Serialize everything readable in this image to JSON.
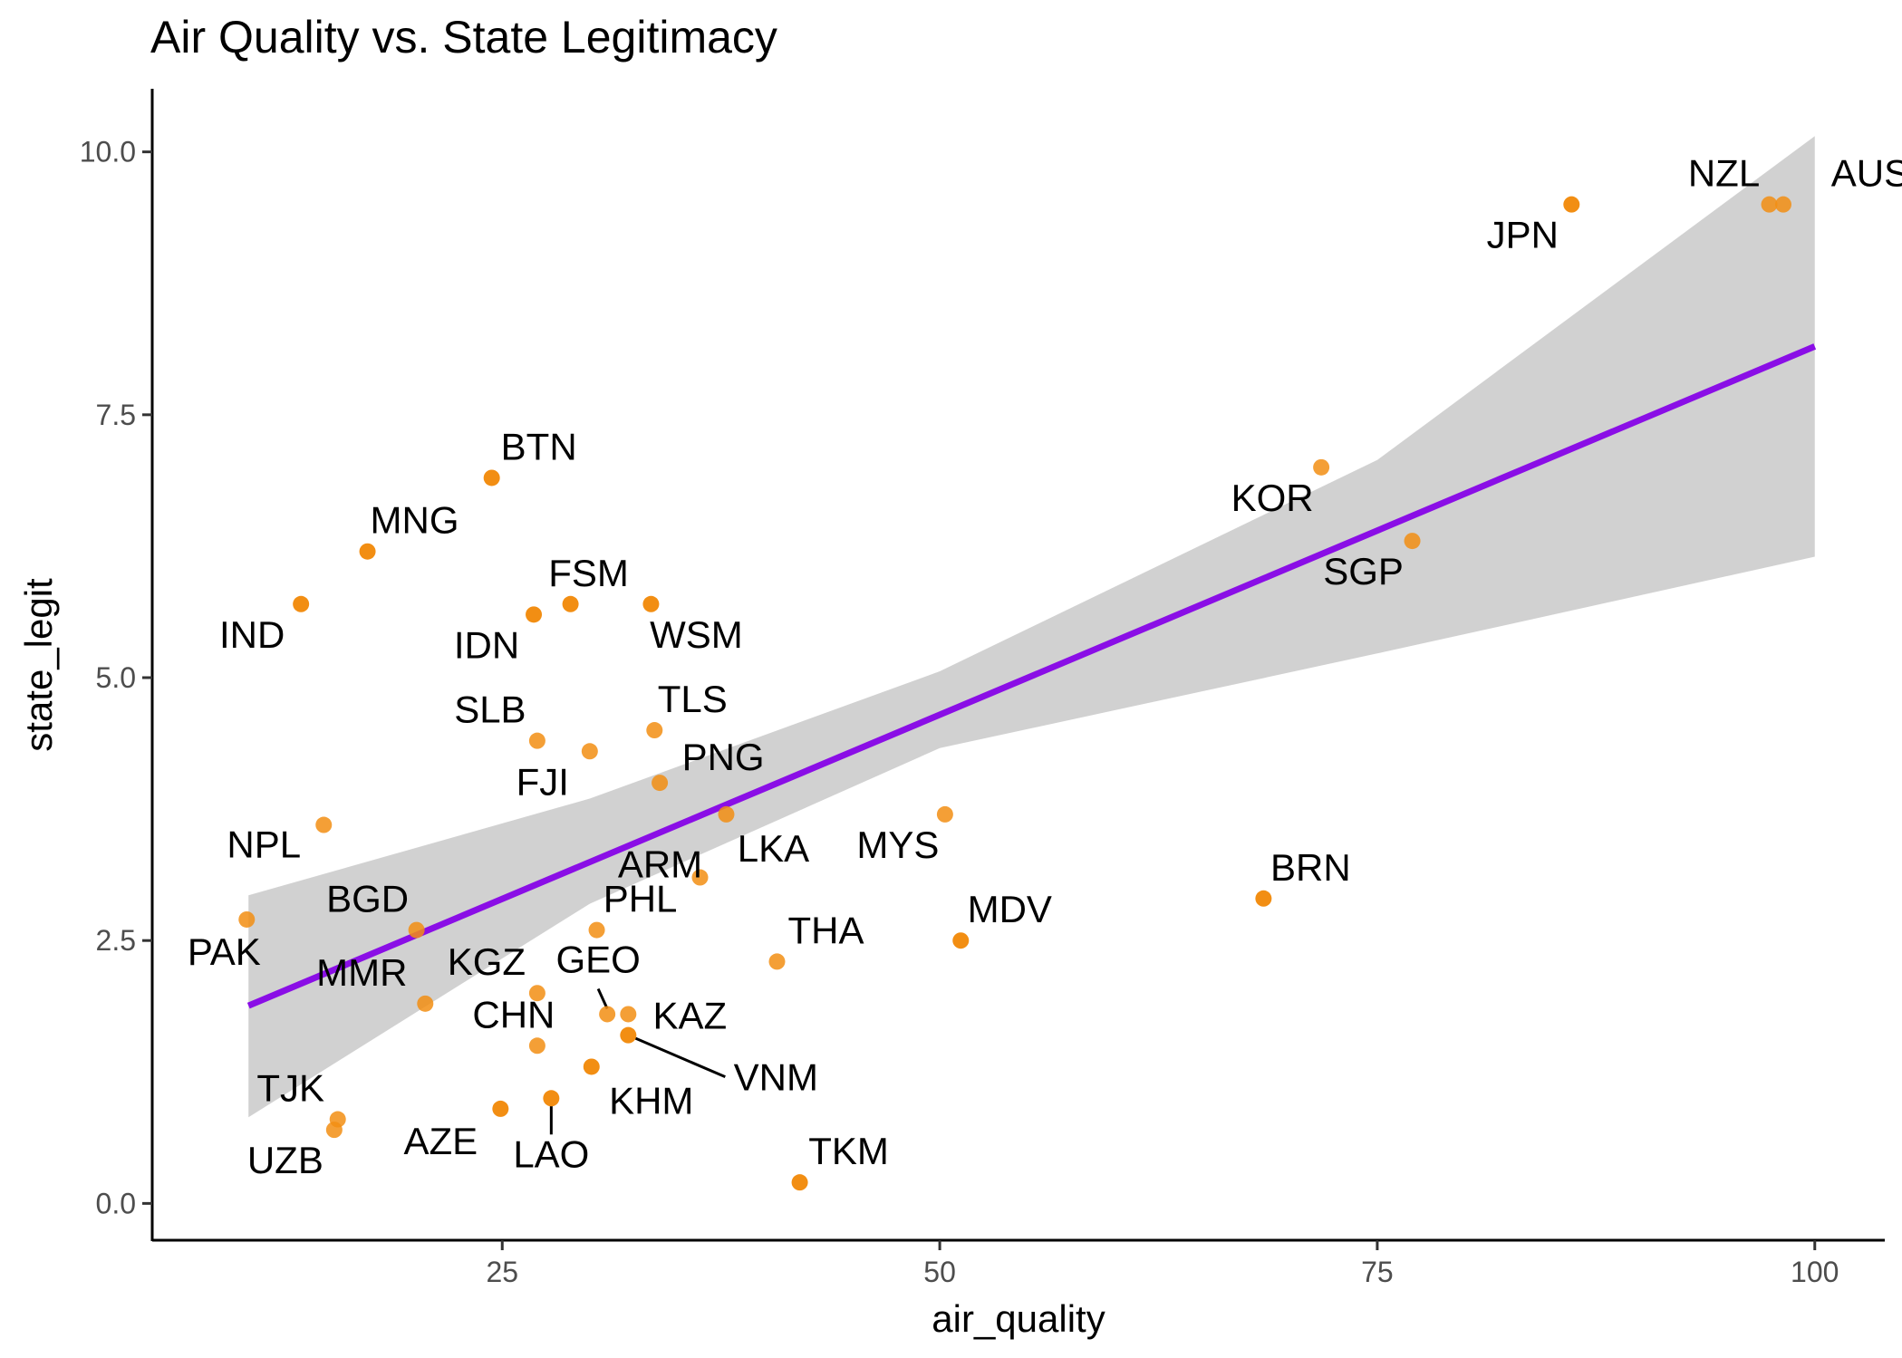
{
  "chart_data": {
    "type": "scatter",
    "title": "Air Quality vs. State Legitimacy",
    "xlabel": "air_quality",
    "ylabel": "state_legit",
    "xlim": [
      5,
      104
    ],
    "ylim": [
      -0.35,
      10.6
    ],
    "x_ticks": [
      {
        "value": 25,
        "label": "25"
      },
      {
        "value": 50,
        "label": "50"
      },
      {
        "value": 75,
        "label": "75"
      },
      {
        "value": 100,
        "label": "100"
      }
    ],
    "y_ticks": [
      {
        "value": 0,
        "label": "0.0"
      },
      {
        "value": 2.5,
        "label": "2.5"
      },
      {
        "value": 5,
        "label": "5.0"
      },
      {
        "value": 7.5,
        "label": "7.5"
      },
      {
        "value": 10,
        "label": "10.0"
      }
    ],
    "grid": false,
    "legend": "none",
    "point_color": "#f28e13",
    "fit_color": "#8a0ee6",
    "band_color": "#cccccc",
    "fit": {
      "method": "linear",
      "x_start": 10.5,
      "x_end": 100,
      "y_start": 1.88,
      "y_end": 8.15,
      "ci_lower": [
        [
          10.5,
          0.82
        ],
        [
          30,
          2.85
        ],
        [
          50,
          4.33
        ],
        [
          75,
          5.23
        ],
        [
          100,
          6.15
        ]
      ],
      "ci_upper": [
        [
          10.5,
          2.93
        ],
        [
          30,
          3.85
        ],
        [
          50,
          5.06
        ],
        [
          75,
          7.07
        ],
        [
          100,
          10.15
        ]
      ]
    },
    "points": [
      {
        "label": "AUS",
        "x": 98.2,
        "y": 9.5
      },
      {
        "label": "NZL",
        "x": 97.4,
        "y": 9.5
      },
      {
        "label": "JPN",
        "x": 86.1,
        "y": 9.5
      },
      {
        "label": "KOR",
        "x": 71.8,
        "y": 7.0
      },
      {
        "label": "SGP",
        "x": 77.0,
        "y": 6.3
      },
      {
        "label": "BRN",
        "x": 68.5,
        "y": 2.9
      },
      {
        "label": "MDV",
        "x": 51.2,
        "y": 2.5
      },
      {
        "label": "MYS",
        "x": 50.3,
        "y": 3.7
      },
      {
        "label": "THA",
        "x": 40.7,
        "y": 2.3
      },
      {
        "label": "TKM",
        "x": 42.0,
        "y": 0.2
      },
      {
        "label": "LKA",
        "x": 37.8,
        "y": 3.7
      },
      {
        "label": "ARM",
        "x": 36.3,
        "y": 3.1
      },
      {
        "label": "PNG",
        "x": 34.0,
        "y": 4.0
      },
      {
        "label": "TLS",
        "x": 33.7,
        "y": 4.5
      },
      {
        "label": "WSM",
        "x": 33.5,
        "y": 5.7
      },
      {
        "label": "FSM",
        "x": 28.9,
        "y": 5.7
      },
      {
        "label": "IDN",
        "x": 26.8,
        "y": 5.6
      },
      {
        "label": "SLB",
        "x": 27.0,
        "y": 4.4
      },
      {
        "label": "FJI",
        "x": 30.0,
        "y": 4.3
      },
      {
        "label": "PHL",
        "x": 30.4,
        "y": 2.6
      },
      {
        "label": "KGZ",
        "x": 27.0,
        "y": 2.0
      },
      {
        "label": "GEO",
        "x": 31.0,
        "y": 1.8
      },
      {
        "label": "KAZ",
        "x": 32.2,
        "y": 1.8
      },
      {
        "label": "VNM",
        "x": 32.2,
        "y": 1.6
      },
      {
        "label": "KHM",
        "x": 30.1,
        "y": 1.3
      },
      {
        "label": "CHN",
        "x": 27.0,
        "y": 1.5
      },
      {
        "label": "LAO",
        "x": 27.8,
        "y": 1.0
      },
      {
        "label": "AZE",
        "x": 24.9,
        "y": 0.9
      },
      {
        "label": "BTN",
        "x": 24.4,
        "y": 6.9
      },
      {
        "label": "MNG",
        "x": 17.3,
        "y": 6.2
      },
      {
        "label": "IND",
        "x": 13.5,
        "y": 5.7
      },
      {
        "label": "NPL",
        "x": 14.8,
        "y": 3.6
      },
      {
        "label": "BGD",
        "x": 20.1,
        "y": 2.6
      },
      {
        "label": "MMR",
        "x": 20.6,
        "y": 1.9
      },
      {
        "label": "PAK",
        "x": 10.4,
        "y": 2.7
      },
      {
        "label": "TJK",
        "x": 15.6,
        "y": 0.8
      },
      {
        "label": "UZB",
        "x": 15.4,
        "y": 0.7
      }
    ]
  }
}
